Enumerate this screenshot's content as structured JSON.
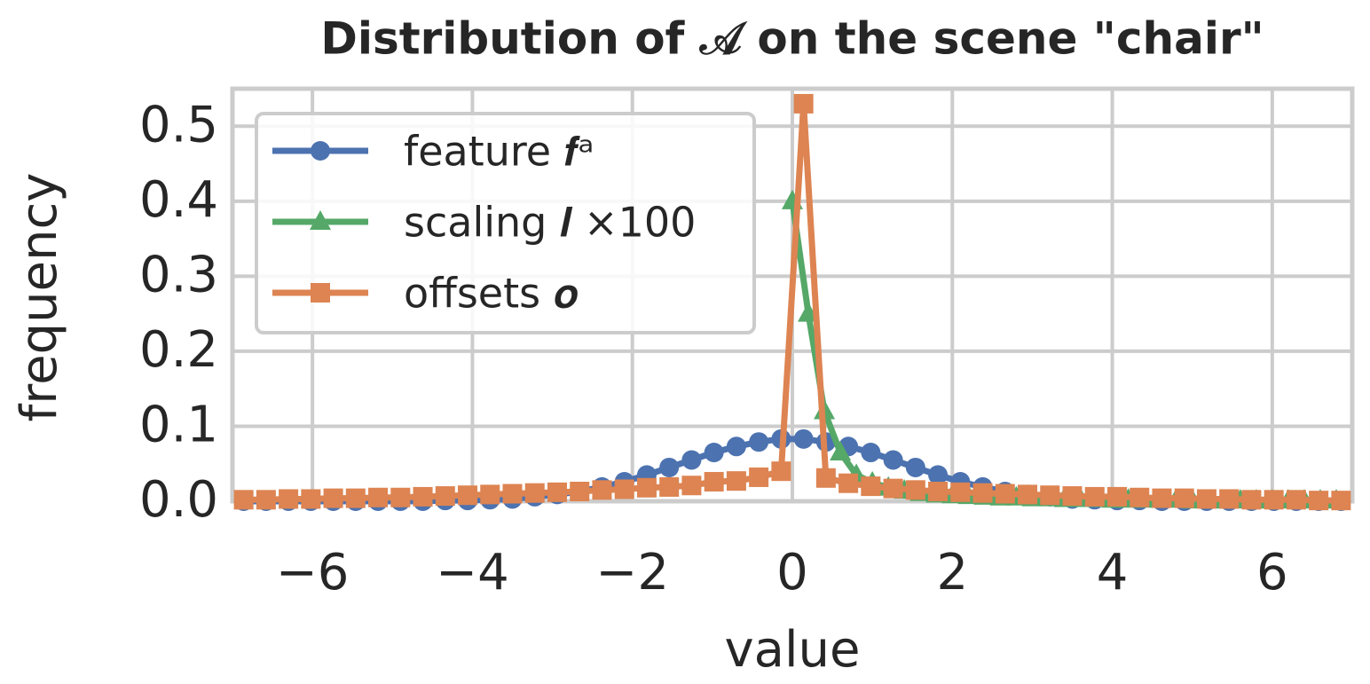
{
  "chart_data": {
    "type": "line",
    "title": "Distribution of 𝒜 on the scene \"chair\"",
    "x_label": "value",
    "y_label": "frequency",
    "xlim": [
      -7,
      7
    ],
    "ylim": [
      0,
      0.55
    ],
    "xticks": [
      {
        "value": -6,
        "label": "−6"
      },
      {
        "value": -4,
        "label": "−4"
      },
      {
        "value": -2,
        "label": "−2"
      },
      0,
      2,
      4,
      6
    ],
    "yticks": [
      {
        "value": 0,
        "label": "0.0"
      },
      0.1,
      0.2,
      0.3,
      0.4,
      0.5
    ],
    "grid": true,
    "legend": "upper left",
    "series": [
      {
        "name": "feature 𝒇ᵃ",
        "color": "#4c72b0",
        "marker": "circle",
        "x": [
          -6.86,
          -6.58,
          -6.3,
          -6.02,
          -5.74,
          -5.46,
          -5.18,
          -4.9,
          -4.62,
          -4.34,
          -4.06,
          -3.78,
          -3.5,
          -3.22,
          -2.94,
          -2.66,
          -2.38,
          -2.1,
          -1.82,
          -1.54,
          -1.26,
          -0.98,
          -0.7,
          -0.42,
          -0.14,
          0.14,
          0.42,
          0.7,
          0.98,
          1.26,
          1.54,
          1.82,
          2.1,
          2.38,
          2.66,
          2.94,
          3.22,
          3.5,
          3.78,
          4.06,
          4.34,
          4.62,
          4.9,
          5.18,
          5.46,
          5.74,
          6.02,
          6.3,
          6.58,
          6.86
        ],
        "values": [
          0,
          0,
          0,
          0,
          0,
          0,
          0,
          0,
          0,
          0.001,
          0.001,
          0.002,
          0.003,
          0.006,
          0.009,
          0.013,
          0.019,
          0.026,
          0.035,
          0.045,
          0.055,
          0.065,
          0.073,
          0.079,
          0.083,
          0.083,
          0.079,
          0.073,
          0.065,
          0.055,
          0.045,
          0.035,
          0.026,
          0.019,
          0.013,
          0.009,
          0.006,
          0.003,
          0.002,
          0.001,
          0.001,
          0,
          0,
          0,
          0,
          0,
          0,
          0,
          0,
          0
        ]
      },
      {
        "name": "scaling 𝒍 ×100",
        "color": "#55a868",
        "marker": "triangle",
        "x": [
          0,
          0.2,
          0.4,
          0.6,
          0.8,
          1,
          1.2,
          1.4,
          1.6,
          1.8,
          2,
          2.2,
          2.4,
          2.6,
          2.8,
          3,
          3.2,
          3.4,
          3.6,
          3.8,
          4,
          4.2,
          4.4,
          4.6,
          4.8,
          5,
          5.2,
          5.4,
          5.6,
          5.8,
          6,
          6.2,
          6.4,
          6.6,
          6.8
        ],
        "values": [
          0.4,
          0.25,
          0.12,
          0.065,
          0.035,
          0.025,
          0.018,
          0.014,
          0.011,
          0.009,
          0.008,
          0.007,
          0.006,
          0.005,
          0.005,
          0.004,
          0.004,
          0.003,
          0.003,
          0.003,
          0.002,
          0.002,
          0.002,
          0.002,
          0.002,
          0.001,
          0.001,
          0.001,
          0.001,
          0.001,
          0.001,
          0.001,
          0.001,
          0.001,
          0.001
        ]
      },
      {
        "name": "offsets 𝒐",
        "color": "#dd8452",
        "marker": "square",
        "x": [
          -6.86,
          -6.58,
          -6.3,
          -6.02,
          -5.74,
          -5.46,
          -5.18,
          -4.9,
          -4.62,
          -4.34,
          -4.06,
          -3.78,
          -3.5,
          -3.22,
          -2.94,
          -2.66,
          -2.38,
          -2.1,
          -1.82,
          -1.54,
          -1.26,
          -0.98,
          -0.7,
          -0.42,
          -0.14,
          0.14,
          0.42,
          0.7,
          0.98,
          1.26,
          1.54,
          1.82,
          2.1,
          2.38,
          2.66,
          2.94,
          3.22,
          3.5,
          3.78,
          4.06,
          4.34,
          4.62,
          4.9,
          5.18,
          5.46,
          5.74,
          6.02,
          6.3,
          6.58,
          6.86
        ],
        "values": [
          0.002,
          0.002,
          0.003,
          0.003,
          0.004,
          0.004,
          0.005,
          0.005,
          0.006,
          0.007,
          0.008,
          0.009,
          0.01,
          0.011,
          0.012,
          0.013,
          0.015,
          0.016,
          0.018,
          0.019,
          0.021,
          0.026,
          0.027,
          0.032,
          0.04,
          0.53,
          0.031,
          0.024,
          0.02,
          0.017,
          0.015,
          0.013,
          0.012,
          0.011,
          0.01,
          0.009,
          0.008,
          0.007,
          0.006,
          0.006,
          0.005,
          0.004,
          0.004,
          0.003,
          0.003,
          0.002,
          0.002,
          0.002,
          0.001,
          0.001
        ]
      }
    ]
  }
}
